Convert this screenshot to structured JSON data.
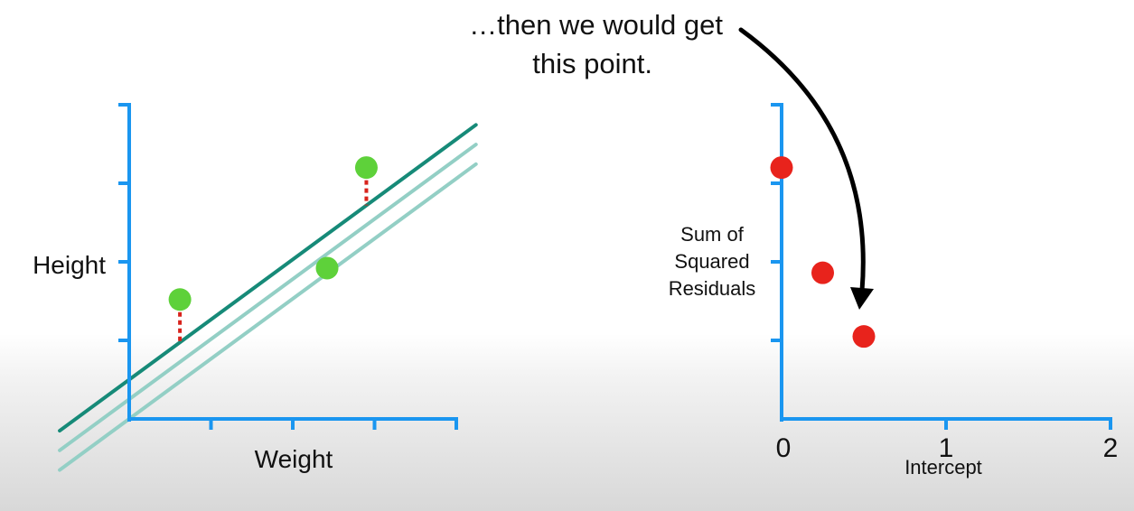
{
  "colors": {
    "axis": "#1a96f0",
    "fit_line_dark": "#168a78",
    "fit_line_light": "#93cfc5",
    "data_point": "#5ed13a",
    "residual": "#d8231c",
    "ssr_point": "#e8231c",
    "arrow": "#000000"
  },
  "annotation": {
    "line1": "…then we would get",
    "line2": "this point."
  },
  "chart_data": [
    {
      "type": "scatter",
      "title": "",
      "xlabel": "Weight",
      "ylabel": "Height",
      "grid": false,
      "xlim": [
        0,
        4
      ],
      "ylim": [
        0,
        4
      ],
      "xticks": [
        1,
        2,
        3,
        4
      ],
      "yticks": [
        1,
        2,
        3,
        4
      ],
      "points": [
        {
          "x": 0.62,
          "y": 1.52
        },
        {
          "x": 2.42,
          "y": 1.92
        },
        {
          "x": 2.9,
          "y": 3.2
        }
      ],
      "fitted_lines": [
        {
          "intercept": 0.5,
          "slope": 0.765,
          "style": "dark"
        },
        {
          "intercept": 0.25,
          "slope": 0.765,
          "style": "light"
        },
        {
          "intercept": 0.0,
          "slope": 0.765,
          "style": "light"
        }
      ],
      "residuals_shown_for": [
        0,
        2
      ]
    },
    {
      "type": "scatter",
      "title": "",
      "xlabel": "Intercept",
      "ylabel_lines": [
        "Sum of",
        "Squared",
        "Residuals"
      ],
      "grid": false,
      "xlim": [
        0,
        2
      ],
      "ylim": [
        0,
        4
      ],
      "xticks": [
        0,
        1,
        2
      ],
      "xtick_labels": [
        "0",
        "1",
        "2"
      ],
      "yticks": [
        1,
        2,
        3,
        4
      ],
      "points": [
        {
          "x": 0,
          "y": 3.2
        },
        {
          "x": 0.25,
          "y": 1.86
        },
        {
          "x": 0.5,
          "y": 1.05
        }
      ]
    }
  ]
}
